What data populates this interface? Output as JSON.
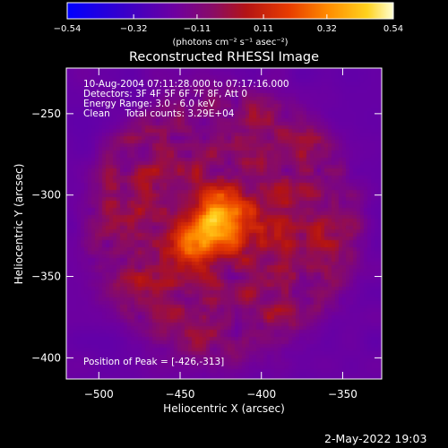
{
  "chart_data": {
    "type": "heatmap",
    "title": "Reconstructed RHESSI Image",
    "xlabel": "Heliocentric X (arcsec)",
    "ylabel": "Heliocentric Y (arcsec)",
    "xlim": [
      -520,
      -326
    ],
    "ylim": [
      -413,
      -222
    ],
    "xticks": [
      -500,
      -450,
      -400,
      -350
    ],
    "yticks": [
      -400,
      -350,
      -300,
      -250
    ],
    "colorbar": {
      "ticks": [
        -0.54,
        -0.32,
        -0.11,
        0.11,
        0.32,
        0.54
      ],
      "tick_labels": [
        "−0.54",
        "−0.32",
        "−0.11",
        "0.11",
        "0.32",
        "0.54"
      ],
      "range": [
        -0.54,
        0.54
      ],
      "label": "(photons cm⁻² s⁻¹ asec⁻²)",
      "colors": [
        "#0000ff",
        "#3a00c8",
        "#6e00a0",
        "#8a0c64",
        "#b41414",
        "#e83c00",
        "#ff8c00",
        "#ffd21e",
        "#ffffd2"
      ]
    },
    "annotations": [
      "10-Aug-2004 07:11:28.000 to 07:17:16.000",
      "Detectors: 3F 4F 5F 6F 7F 8F, Att 0",
      "Energy Range: 3.0 - 6.0 keV",
      "Clean     Total counts: 3.29E+04"
    ],
    "peak_label": "Position of Peak = [-426,-313]",
    "peak": [
      -426,
      -313
    ],
    "background_value": -0.2,
    "disk": {
      "center": [
        -423,
        -318
      ],
      "radius": 82,
      "level": 0.12
    },
    "sources": [
      {
        "x": -426,
        "y": -313,
        "amp": 0.44,
        "sigma": 11
      },
      {
        "x": -440,
        "y": -330,
        "amp": 0.36,
        "sigma": 10
      },
      {
        "x": -408,
        "y": -320,
        "amp": 0.14,
        "sigma": 10
      }
    ]
  },
  "footer": {
    "timestamp": "2-May-2022 19:03"
  }
}
